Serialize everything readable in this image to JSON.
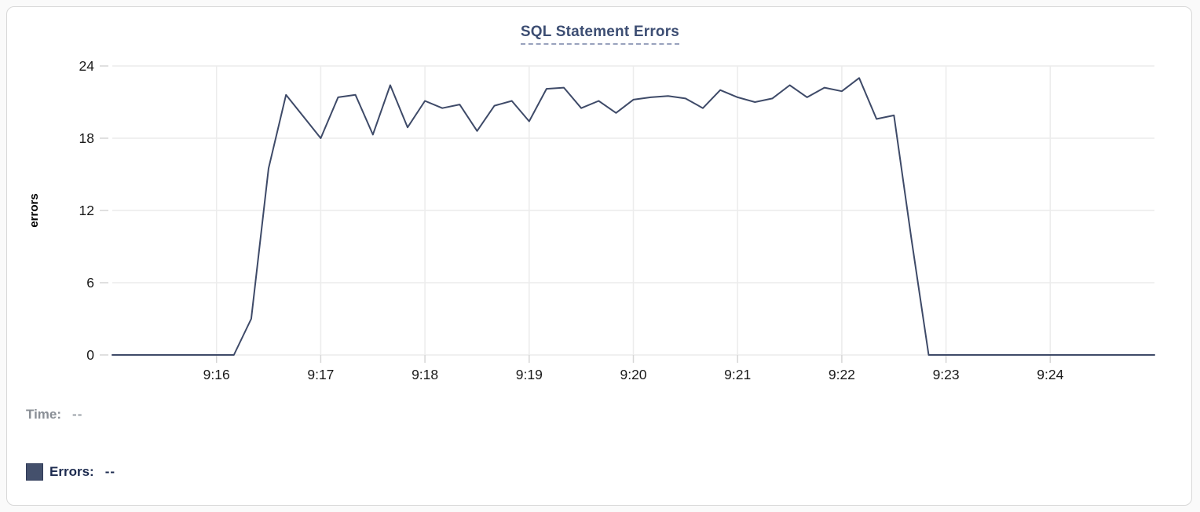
{
  "chart_data": {
    "type": "line",
    "title": "SQL Statement Errors",
    "xlabel": "",
    "ylabel": "errors",
    "ylim": [
      0,
      24
    ],
    "y_ticks": [
      0,
      6,
      12,
      18,
      24
    ],
    "x_tick_labels": [
      "9:16",
      "9:17",
      "9:18",
      "9:19",
      "9:20",
      "9:21",
      "9:22",
      "9:23",
      "9:24"
    ],
    "x_range": [
      "9:15:00",
      "9:25:00"
    ],
    "x_interval_seconds": 10,
    "grid": true,
    "legend_position": "bottom-left",
    "series": [
      {
        "name": "Errors",
        "color": "#3e4a68",
        "values": [
          0,
          0,
          0,
          0,
          0,
          0,
          0,
          0,
          3,
          15.5,
          21.6,
          19.8,
          18,
          21.4,
          21.6,
          18.3,
          22.4,
          18.9,
          21.1,
          20.5,
          20.8,
          18.6,
          20.7,
          21.1,
          19.4,
          22.1,
          22.2,
          20.5,
          21.1,
          20.1,
          21.2,
          21.4,
          21.5,
          21.3,
          20.5,
          22,
          21.4,
          21,
          21.3,
          22.4,
          21.4,
          22.2,
          21.9,
          23,
          19.6,
          19.9,
          9.7,
          0,
          0,
          0,
          0,
          0,
          0,
          0,
          0,
          0,
          0,
          0,
          0,
          0,
          0
        ]
      }
    ]
  },
  "colors": {
    "grid": "#ececec",
    "tick": "#d6d6d6",
    "axis_text": "#1a1a1a",
    "title": "#3d4e73",
    "line": "#3e4a68",
    "swatch": "#44506c"
  },
  "status": {
    "time_label": "Time:",
    "time_value": "--",
    "errors_label": "Errors:",
    "errors_value": "--"
  }
}
